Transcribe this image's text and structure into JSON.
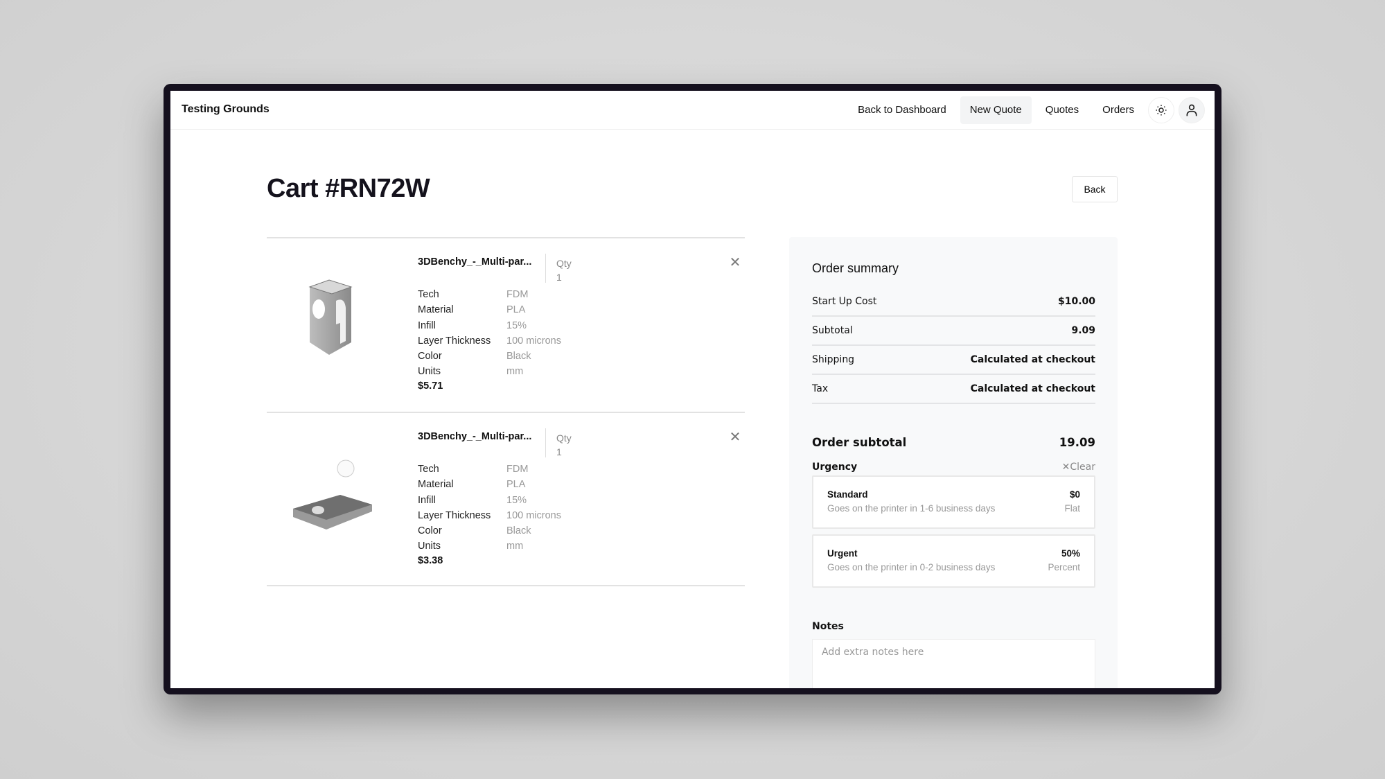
{
  "nav": {
    "brand": "Testing Grounds",
    "items": [
      "Back to Dashboard",
      "New Quote",
      "Quotes",
      "Orders"
    ],
    "active": "New Quote"
  },
  "page": {
    "title": "Cart #RN72W",
    "back_label": "Back"
  },
  "cart_items": [
    {
      "name": "3DBenchy_-_Multi-par...",
      "qty_label": "Qty",
      "qty": "1",
      "specs": [
        [
          "Tech",
          "FDM"
        ],
        [
          "Material",
          "PLA"
        ],
        [
          "Infill",
          "15%"
        ],
        [
          "Layer Thickness",
          "100 microns"
        ],
        [
          "Color",
          "Black"
        ],
        [
          "Units",
          "mm"
        ]
      ],
      "price": "$5.71"
    },
    {
      "name": "3DBenchy_-_Multi-par...",
      "qty_label": "Qty",
      "qty": "1",
      "specs": [
        [
          "Tech",
          "FDM"
        ],
        [
          "Material",
          "PLA"
        ],
        [
          "Infill",
          "15%"
        ],
        [
          "Layer Thickness",
          "100 microns"
        ],
        [
          "Color",
          "Black"
        ],
        [
          "Units",
          "mm"
        ]
      ],
      "price": "$3.38"
    }
  ],
  "summary": {
    "title": "Order summary",
    "rows": [
      [
        "Start Up Cost",
        "$10.00"
      ],
      [
        "Subtotal",
        "9.09"
      ],
      [
        "Shipping",
        "Calculated at checkout"
      ],
      [
        "Tax",
        "Calculated at checkout"
      ]
    ],
    "order_subtotal_label": "Order subtotal",
    "order_subtotal": "19.09",
    "urgency_label": "Urgency",
    "clear_label": "Clear",
    "options": [
      {
        "name": "Standard",
        "desc": "Goes on the printer in 1-6 business days",
        "amount": "$0",
        "type": "Flat"
      },
      {
        "name": "Urgent",
        "desc": "Goes on the printer in 0-2 business days",
        "amount": "50%",
        "type": "Percent"
      }
    ],
    "notes_label": "Notes",
    "notes_placeholder": "Add extra notes here"
  }
}
